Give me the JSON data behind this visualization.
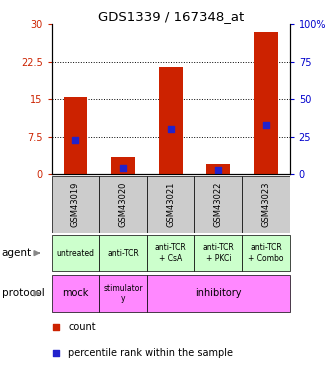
{
  "title": "GDS1339 / 167348_at",
  "samples": [
    "GSM43019",
    "GSM43020",
    "GSM43021",
    "GSM43022",
    "GSM43023"
  ],
  "count_values": [
    15.5,
    3.5,
    21.5,
    2.0,
    28.5
  ],
  "percentile_values": [
    23,
    4,
    30,
    3,
    33
  ],
  "bar_color": "#cc2200",
  "blue_color": "#2222cc",
  "ylim_left": [
    0,
    30
  ],
  "ylim_right": [
    0,
    100
  ],
  "yticks_left": [
    0,
    7.5,
    15,
    22.5,
    30
  ],
  "yticks_right": [
    0,
    25,
    50,
    75,
    100
  ],
  "ytick_labels_left": [
    "0",
    "7.5",
    "15",
    "22.5",
    "30"
  ],
  "ytick_labels_right": [
    "0",
    "25",
    "50",
    "75",
    "100%"
  ],
  "agent_labels": [
    "untreated",
    "anti-TCR",
    "anti-TCR\n+ CsA",
    "anti-TCR\n+ PKCi",
    "anti-TCR\n+ Combo"
  ],
  "protocol_labels": [
    "mock",
    "stimulator\ny",
    "inhibitory"
  ],
  "agent_bg": "#ccffcc",
  "protocol_bg": "#ff88ff",
  "sample_bg": "#cccccc",
  "bar_width": 0.5
}
